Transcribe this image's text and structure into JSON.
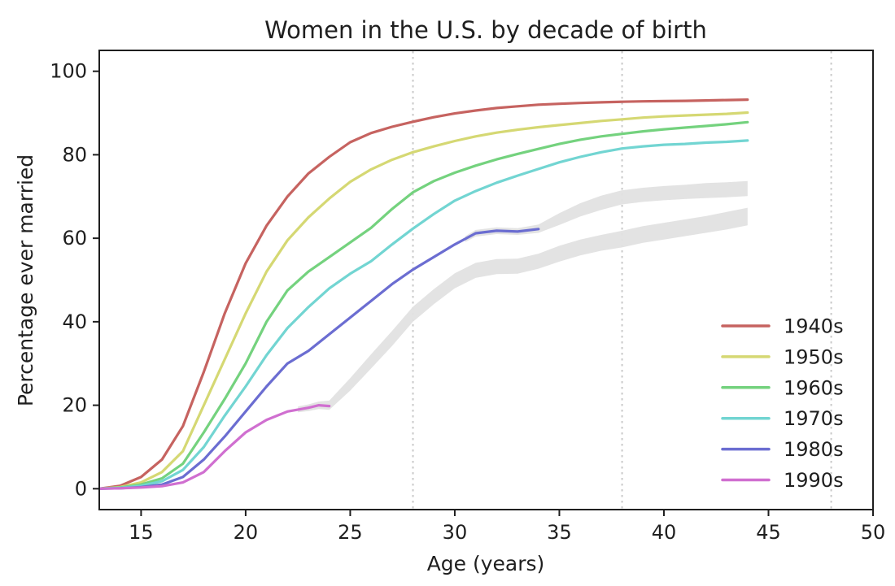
{
  "chart_data": {
    "type": "line",
    "title": "Women in the U.S. by decade of birth",
    "xlabel": "Age (years)",
    "ylabel": "Percentage ever married",
    "xlim": [
      13,
      50
    ],
    "ylim": [
      -5,
      105
    ],
    "x_ticks": [
      15,
      20,
      25,
      30,
      35,
      40,
      45,
      50
    ],
    "y_ticks": [
      0,
      20,
      40,
      60,
      80,
      100
    ],
    "grid": false,
    "vlines": {
      "x": [
        28,
        38,
        48
      ],
      "style": "dotted",
      "color": "#c9c9c9"
    },
    "band_color": "#e2e2e2",
    "legend": {
      "position": "lower right",
      "entries": [
        {
          "label": "1940s",
          "color": "#c66360"
        },
        {
          "label": "1950s",
          "color": "#d5d873"
        },
        {
          "label": "1960s",
          "color": "#74d27e"
        },
        {
          "label": "1970s",
          "color": "#72d5d2"
        },
        {
          "label": "1980s",
          "color": "#6b6dd1"
        },
        {
          "label": "1990s",
          "color": "#d06fd0"
        }
      ]
    },
    "series": [
      {
        "name": "1940s",
        "color": "#c66360",
        "points": [
          [
            13,
            0
          ],
          [
            14,
            0.7
          ],
          [
            15,
            2.8
          ],
          [
            16,
            7
          ],
          [
            17,
            15
          ],
          [
            18,
            28
          ],
          [
            19,
            42
          ],
          [
            20,
            54
          ],
          [
            21,
            63
          ],
          [
            22,
            70
          ],
          [
            23,
            75.5
          ],
          [
            24,
            79.5
          ],
          [
            25,
            83
          ],
          [
            26,
            85.2
          ],
          [
            27,
            86.7
          ],
          [
            28,
            87.9
          ],
          [
            29,
            89
          ],
          [
            30,
            89.9
          ],
          [
            31,
            90.6
          ],
          [
            32,
            91.2
          ],
          [
            33,
            91.6
          ],
          [
            34,
            92
          ],
          [
            35,
            92.2
          ],
          [
            36,
            92.4
          ],
          [
            37,
            92.55
          ],
          [
            38,
            92.7
          ],
          [
            39,
            92.8
          ],
          [
            40,
            92.85
          ],
          [
            41,
            92.9
          ],
          [
            42,
            93
          ],
          [
            43,
            93.1
          ],
          [
            44,
            93.2
          ]
        ]
      },
      {
        "name": "1950s",
        "color": "#d5d873",
        "points": [
          [
            13,
            0
          ],
          [
            14,
            0.4
          ],
          [
            15,
            1.5
          ],
          [
            16,
            4
          ],
          [
            17,
            9
          ],
          [
            18,
            20
          ],
          [
            19,
            31
          ],
          [
            20,
            42
          ],
          [
            21,
            52
          ],
          [
            22,
            59.5
          ],
          [
            23,
            65
          ],
          [
            24,
            69.5
          ],
          [
            25,
            73.5
          ],
          [
            26,
            76.5
          ],
          [
            27,
            78.8
          ],
          [
            28,
            80.6
          ],
          [
            29,
            82
          ],
          [
            30,
            83.3
          ],
          [
            31,
            84.4
          ],
          [
            32,
            85.3
          ],
          [
            33,
            86
          ],
          [
            34,
            86.6
          ],
          [
            35,
            87.1
          ],
          [
            36,
            87.6
          ],
          [
            37,
            88.1
          ],
          [
            38,
            88.5
          ],
          [
            39,
            88.9
          ],
          [
            40,
            89.2
          ],
          [
            41,
            89.4
          ],
          [
            42,
            89.6
          ],
          [
            43,
            89.8
          ],
          [
            44,
            90.1
          ]
        ]
      },
      {
        "name": "1960s",
        "color": "#74d27e",
        "points": [
          [
            13,
            0
          ],
          [
            14,
            0.3
          ],
          [
            15,
            1
          ],
          [
            16,
            2.5
          ],
          [
            17,
            6
          ],
          [
            18,
            13.5
          ],
          [
            19,
            21.5
          ],
          [
            20,
            30
          ],
          [
            21,
            40
          ],
          [
            22,
            47.5
          ],
          [
            23,
            52
          ],
          [
            24,
            55.5
          ],
          [
            25,
            59
          ],
          [
            26,
            62.5
          ],
          [
            27,
            67
          ],
          [
            28,
            71
          ],
          [
            29,
            73.7
          ],
          [
            30,
            75.7
          ],
          [
            31,
            77.4
          ],
          [
            32,
            78.9
          ],
          [
            33,
            80.2
          ],
          [
            34,
            81.4
          ],
          [
            35,
            82.6
          ],
          [
            36,
            83.6
          ],
          [
            37,
            84.4
          ],
          [
            38,
            85
          ],
          [
            39,
            85.6
          ],
          [
            40,
            86.1
          ],
          [
            41,
            86.5
          ],
          [
            42,
            86.9
          ],
          [
            43,
            87.3
          ],
          [
            44,
            87.8
          ]
        ]
      },
      {
        "name": "1970s",
        "color": "#72d5d2",
        "points": [
          [
            13,
            0
          ],
          [
            14,
            0.2
          ],
          [
            15,
            0.7
          ],
          [
            16,
            1.8
          ],
          [
            17,
            4.5
          ],
          [
            18,
            10
          ],
          [
            19,
            17.5
          ],
          [
            20,
            24.5
          ],
          [
            21,
            32
          ],
          [
            22,
            38.5
          ],
          [
            23,
            43.5
          ],
          [
            24,
            48
          ],
          [
            25,
            51.5
          ],
          [
            26,
            54.5
          ],
          [
            27,
            58.5
          ],
          [
            28,
            62.3
          ],
          [
            29,
            65.8
          ],
          [
            30,
            69
          ],
          [
            31,
            71.3
          ],
          [
            32,
            73.3
          ],
          [
            33,
            75
          ],
          [
            34,
            76.6
          ],
          [
            35,
            78.2
          ],
          [
            36,
            79.5
          ],
          [
            37,
            80.6
          ],
          [
            38,
            81.5
          ],
          [
            39,
            82
          ],
          [
            40,
            82.4
          ],
          [
            41,
            82.6
          ],
          [
            42,
            82.9
          ],
          [
            43,
            83.1
          ],
          [
            44,
            83.4
          ]
        ]
      },
      {
        "name": "1980s",
        "color": "#6b6dd1",
        "points": [
          [
            13,
            0
          ],
          [
            14,
            0.1
          ],
          [
            15,
            0.4
          ],
          [
            16,
            1
          ],
          [
            17,
            2.8
          ],
          [
            18,
            7
          ],
          [
            19,
            12.5
          ],
          [
            20,
            18.5
          ],
          [
            21,
            24.5
          ],
          [
            22,
            30
          ],
          [
            23,
            33
          ],
          [
            24,
            37
          ],
          [
            25,
            41
          ],
          [
            26,
            45
          ],
          [
            27,
            49
          ],
          [
            28,
            52.5
          ],
          [
            29,
            55.5
          ],
          [
            30,
            58.5
          ],
          [
            31,
            61.2
          ],
          [
            32,
            61.8
          ],
          [
            33,
            61.6
          ],
          [
            34,
            62.2
          ]
        ]
      },
      {
        "name": "1990s",
        "color": "#d06fd0",
        "points": [
          [
            13,
            0
          ],
          [
            14,
            0.1
          ],
          [
            15,
            0.3
          ],
          [
            16,
            0.6
          ],
          [
            17,
            1.5
          ],
          [
            18,
            4
          ],
          [
            19,
            9
          ],
          [
            20,
            13.5
          ],
          [
            21,
            16.5
          ],
          [
            22,
            18.5
          ],
          [
            23,
            19.4
          ],
          [
            23.5,
            20
          ],
          [
            24,
            19.8
          ]
        ]
      }
    ],
    "bands": [
      {
        "name": "1980s projection band",
        "points": [
          [
            30.5,
            59.8,
            0.7
          ],
          [
            31,
            61.2,
            0.8
          ],
          [
            32,
            61.8,
            0.8
          ],
          [
            33,
            61.6,
            0.8
          ],
          [
            34,
            62.3,
            1.0
          ],
          [
            35,
            64.6,
            1.4
          ],
          [
            36,
            66.8,
            1.6
          ],
          [
            37,
            68.5,
            1.7
          ],
          [
            38,
            69.8,
            1.7
          ],
          [
            39,
            70.4,
            1.7
          ],
          [
            40,
            70.8,
            1.7
          ],
          [
            41,
            71.1,
            1.7
          ],
          [
            42,
            71.4,
            1.8
          ],
          [
            43,
            71.6,
            1.8
          ],
          [
            44,
            71.9,
            1.8
          ]
        ]
      },
      {
        "name": "1990s projection band",
        "points": [
          [
            22.5,
            19,
            0.7
          ],
          [
            23,
            19.4,
            0.8
          ],
          [
            23.5,
            20,
            0.9
          ],
          [
            24,
            20,
            1.1
          ],
          [
            25,
            25,
            1.5
          ],
          [
            26,
            30.5,
            1.7
          ],
          [
            27,
            36,
            1.8
          ],
          [
            28,
            41.8,
            1.8
          ],
          [
            29,
            46,
            1.8
          ],
          [
            30,
            49.8,
            1.8
          ],
          [
            31,
            52.3,
            1.8
          ],
          [
            32,
            53.2,
            1.8
          ],
          [
            33,
            53.3,
            1.8
          ],
          [
            34,
            54.5,
            1.8
          ],
          [
            35,
            56.3,
            1.9
          ],
          [
            36,
            57.8,
            1.9
          ],
          [
            37,
            58.9,
            1.9
          ],
          [
            38,
            59.8,
            2.0
          ],
          [
            39,
            60.9,
            2.0
          ],
          [
            40,
            61.7,
            2.0
          ],
          [
            41,
            62.5,
            2.0
          ],
          [
            42,
            63.3,
            2.0
          ],
          [
            43,
            64.2,
            2.1
          ],
          [
            44,
            65.2,
            2.1
          ]
        ]
      }
    ]
  }
}
